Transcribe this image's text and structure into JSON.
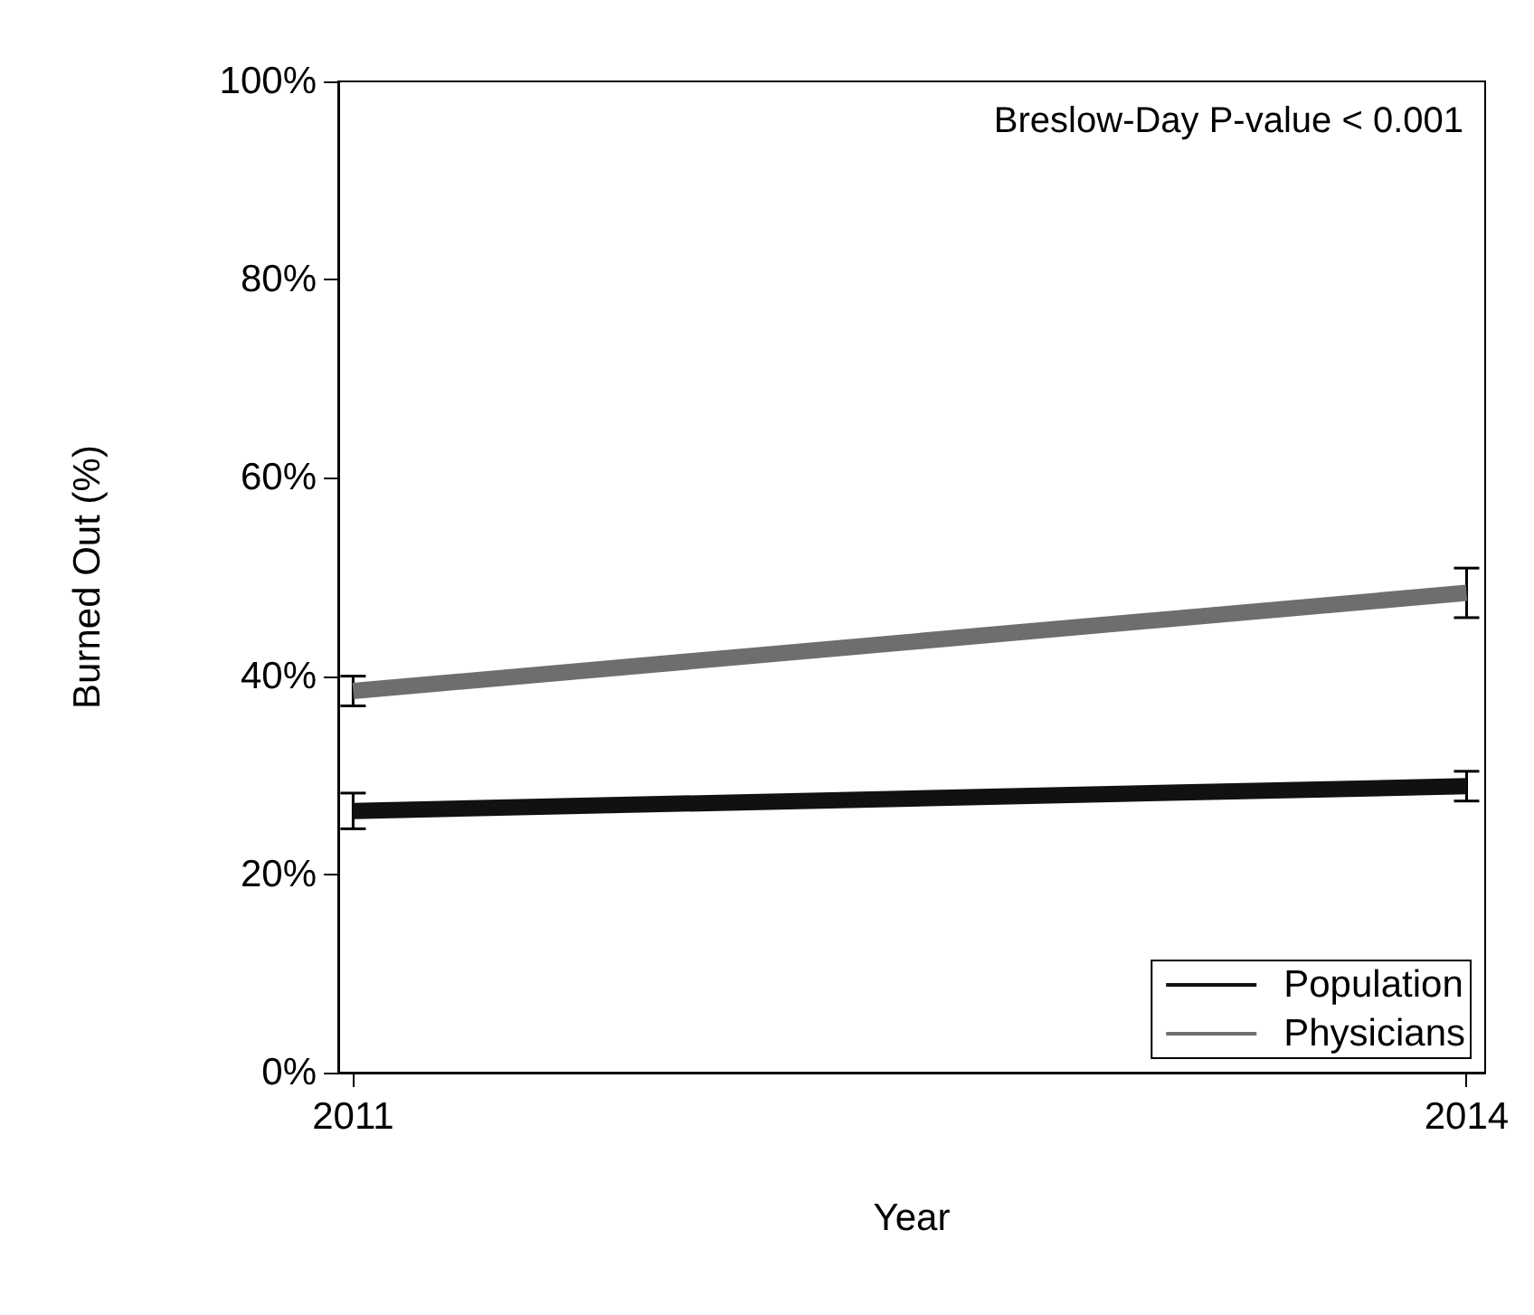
{
  "chart_data": {
    "type": "line",
    "xlabel": "Year",
    "ylabel": "Burned Out (%)",
    "x": [
      2011,
      2014
    ],
    "series": [
      {
        "name": "Population",
        "color": "#111111",
        "values": [
          26.4,
          28.9
        ],
        "errors": [
          1.8,
          1.5
        ]
      },
      {
        "name": "Physicians",
        "color": "#6e6e6e",
        "values": [
          38.5,
          48.4
        ],
        "errors": [
          1.5,
          2.5
        ]
      }
    ],
    "xlim": [
      2010.96,
      2014.05
    ],
    "xticks": [
      2011,
      2014
    ],
    "ylim": [
      0,
      100
    ],
    "yticks": [
      {
        "value": 0,
        "label": "0%"
      },
      {
        "value": 20,
        "label": "20%"
      },
      {
        "value": 40,
        "label": "40%"
      },
      {
        "value": 60,
        "label": "60%"
      },
      {
        "value": 80,
        "label": "80%"
      },
      {
        "value": 100,
        "label": "100%"
      }
    ],
    "annotations": [
      "Breslow-Day P-value < 0.001"
    ],
    "legend": "bottom right",
    "grid": false,
    "marker": "none",
    "line_style": "solid"
  }
}
